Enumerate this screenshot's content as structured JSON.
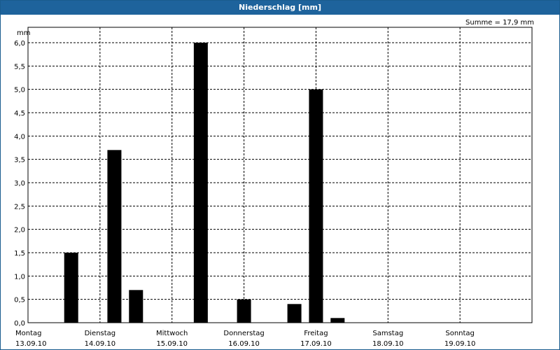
{
  "header": {
    "title": "Niederschlag [mm]"
  },
  "summary": {
    "label": "Summe = 17,9 mm"
  },
  "chart_data": {
    "type": "bar",
    "title": "Niederschlag [mm]",
    "ylabel": "mm",
    "ylim": [
      0,
      6.0
    ],
    "yticks": [
      "0,0",
      "0,5",
      "1,0",
      "1,5",
      "2,0",
      "2,5",
      "3,0",
      "3,5",
      "4,0",
      "4,5",
      "5,0",
      "5,5",
      "6,0"
    ],
    "grid": true,
    "days": [
      {
        "name": "Montag",
        "date": "13.09.10"
      },
      {
        "name": "Dienstag",
        "date": "14.09.10"
      },
      {
        "name": "Mittwoch",
        "date": "15.09.10"
      },
      {
        "name": "Donnerstag",
        "date": "16.09.10"
      },
      {
        "name": "Freitag",
        "date": "17.09.10"
      },
      {
        "name": "Samstag",
        "date": "18.09.10"
      },
      {
        "name": "Sonntag",
        "date": "19.09.10"
      }
    ],
    "bars": [
      {
        "day": 0.6,
        "value": 1.5
      },
      {
        "day": 1.2,
        "value": 3.7
      },
      {
        "day": 1.5,
        "value": 0.7
      },
      {
        "day": 2.4,
        "value": 6.0
      },
      {
        "day": 3.0,
        "value": 0.5
      },
      {
        "day": 3.7,
        "value": 0.4
      },
      {
        "day": 4.0,
        "value": 5.0
      },
      {
        "day": 4.3,
        "value": 0.1
      }
    ],
    "colors": {
      "bar": "#000000",
      "grid": "#000000",
      "title_bg": "#1e639c"
    }
  }
}
